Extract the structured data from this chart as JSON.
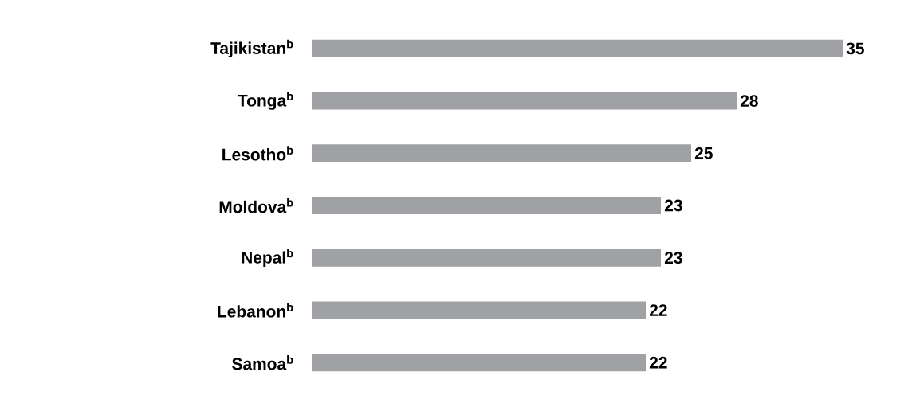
{
  "chart_data": {
    "type": "bar",
    "orientation": "horizontal",
    "categories": [
      "Tajikistan$^{b}$",
      "Tonga$^{b}$",
      "Lesotho$^{b}$",
      "Moldova$^{b}$",
      "Nepal$^{b}$",
      "Lebanon$^{b}$",
      "Samoa$^{b}$"
    ],
    "values": [
      35,
      28,
      25,
      23,
      23,
      22,
      22
    ],
    "color": "#a0a1a4",
    "data_labels": true
  }
}
